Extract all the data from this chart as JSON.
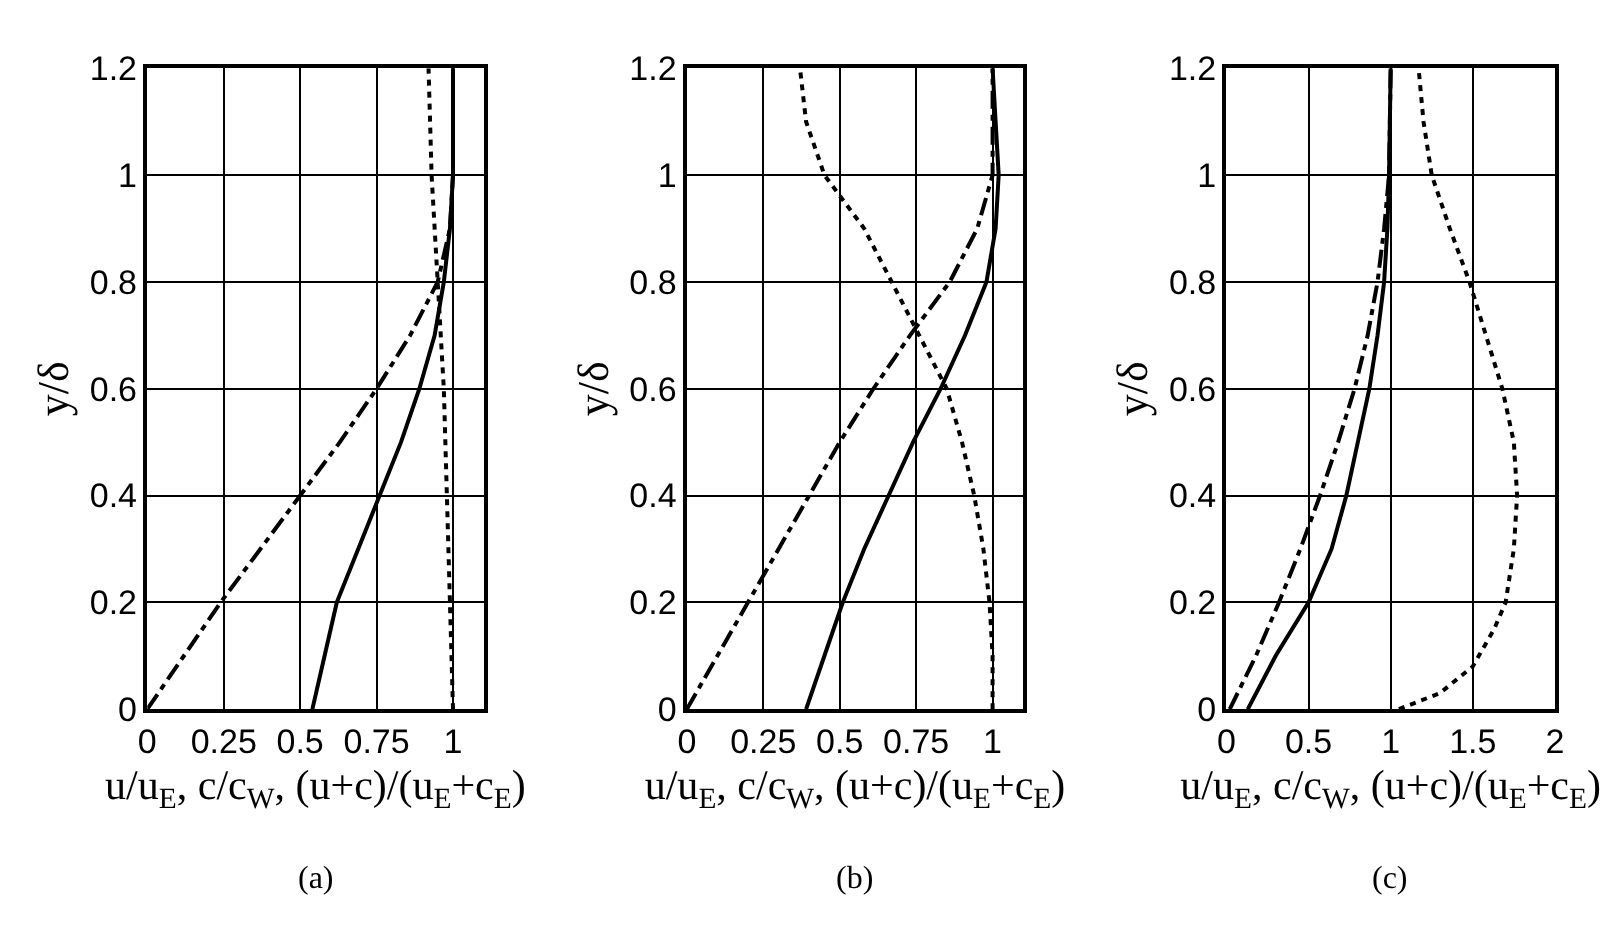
{
  "chart_data": [
    {
      "type": "line",
      "xlabel": "u/u$_{E}$, c/c$_{W}$, (u+c)/(u$_{E}$+c$_{E}$)",
      "ylabel": "y/δ",
      "annotations": [
        "(a)"
      ],
      "xlim": [
        0,
        1.1
      ],
      "xticks": [
        0,
        0.25,
        0.5,
        0.75,
        1
      ],
      "ylim": [
        0,
        1.2
      ],
      "yticks": [
        0,
        0.2,
        0.4,
        0.6,
        0.8,
        1,
        1.2
      ],
      "grid": true,
      "series": [
        {
          "color": "#000000",
          "line_style": "solid",
          "x": [
            0.54,
            0.58,
            0.62,
            0.69,
            0.76,
            0.83,
            0.89,
            0.94,
            0.97,
            0.99,
            1.0,
            1.0
          ],
          "values": [
            0,
            0.1,
            0.2,
            0.3,
            0.4,
            0.5,
            0.6,
            0.7,
            0.8,
            0.9,
            1.0,
            1.2
          ]
        },
        {
          "color": "#000000",
          "line_style": "dashdot",
          "x": [
            0,
            0.12,
            0.24,
            0.37,
            0.5,
            0.63,
            0.75,
            0.86,
            0.95,
            0.99,
            1.0,
            1.0
          ],
          "values": [
            0,
            0.1,
            0.2,
            0.3,
            0.4,
            0.5,
            0.6,
            0.7,
            0.8,
            0.9,
            1.0,
            1.2
          ]
        },
        {
          "color": "#000000",
          "line_style": "dotted",
          "x": [
            1.0,
            0.99,
            0.98,
            0.97,
            0.95,
            0.93,
            0.92
          ],
          "values": [
            0,
            0.2,
            0.4,
            0.6,
            0.8,
            1.0,
            1.2
          ]
        }
      ]
    },
    {
      "type": "line",
      "xlabel": "u/u$_{E}$, c/c$_{W}$, (u+c)/(u$_{E}$+c$_{E}$)",
      "ylabel": "y/δ",
      "annotations": [
        "(b)"
      ],
      "xlim": [
        0,
        1.1
      ],
      "xticks": [
        0,
        0.25,
        0.5,
        0.75,
        1
      ],
      "ylim": [
        0,
        1.2
      ],
      "yticks": [
        0,
        0.2,
        0.4,
        0.6,
        0.8,
        1,
        1.2
      ],
      "grid": true,
      "series": [
        {
          "color": "#000000",
          "line_style": "solid",
          "x": [
            0.39,
            0.45,
            0.51,
            0.58,
            0.66,
            0.74,
            0.83,
            0.91,
            0.98,
            1.01,
            1.02,
            1.01,
            1.0
          ],
          "values": [
            0,
            0.1,
            0.2,
            0.3,
            0.4,
            0.5,
            0.6,
            0.7,
            0.8,
            0.9,
            1.0,
            1.1,
            1.2
          ]
        },
        {
          "color": "#000000",
          "line_style": "dashdot",
          "x": [
            0,
            0.1,
            0.2,
            0.3,
            0.4,
            0.5,
            0.61,
            0.73,
            0.86,
            0.95,
            1.0,
            1.0
          ],
          "values": [
            0,
            0.1,
            0.2,
            0.3,
            0.4,
            0.5,
            0.6,
            0.7,
            0.8,
            0.9,
            1.0,
            1.2
          ]
        },
        {
          "color": "#000000",
          "line_style": "dotted",
          "x": [
            1.0,
            1.0,
            0.99,
            0.97,
            0.94,
            0.9,
            0.85,
            0.76,
            0.67,
            0.58,
            0.45,
            0.39,
            0.37
          ],
          "values": [
            0,
            0.1,
            0.2,
            0.3,
            0.4,
            0.5,
            0.6,
            0.7,
            0.8,
            0.9,
            1.0,
            1.1,
            1.2
          ]
        }
      ]
    },
    {
      "type": "line",
      "xlabel": "u/u$_{E}$, c/c$_{W}$, (u+c)/(u$_{E}$+c$_{E}$)",
      "ylabel": "y/δ",
      "annotations": [
        "(c)"
      ],
      "xlim": [
        0,
        2
      ],
      "xticks": [
        0,
        0.5,
        1,
        1.5,
        2
      ],
      "ylim": [
        0,
        1.2
      ],
      "yticks": [
        0,
        0.2,
        0.4,
        0.6,
        0.8,
        1,
        1.2
      ],
      "grid": true,
      "series": [
        {
          "color": "#000000",
          "line_style": "solid",
          "x": [
            0.13,
            0.3,
            0.5,
            0.64,
            0.73,
            0.8,
            0.87,
            0.92,
            0.96,
            0.98,
            0.99,
            1.0
          ],
          "values": [
            0,
            0.1,
            0.2,
            0.3,
            0.4,
            0.5,
            0.6,
            0.7,
            0.8,
            0.9,
            1.0,
            1.2
          ]
        },
        {
          "color": "#000000",
          "line_style": "dashdot",
          "x": [
            0.02,
            0.18,
            0.32,
            0.45,
            0.57,
            0.68,
            0.78,
            0.86,
            0.92,
            0.96,
            0.99,
            1.0
          ],
          "values": [
            0,
            0.1,
            0.2,
            0.3,
            0.4,
            0.5,
            0.6,
            0.7,
            0.8,
            0.9,
            1.0,
            1.2
          ]
        },
        {
          "color": "#000000",
          "line_style": "dotted",
          "x": [
            1.05,
            1.3,
            1.5,
            1.63,
            1.7,
            1.75,
            1.77,
            1.75,
            1.68,
            1.58,
            1.48,
            1.36,
            1.25,
            1.2,
            1.17
          ],
          "values": [
            0,
            0.03,
            0.08,
            0.15,
            0.2,
            0.3,
            0.4,
            0.5,
            0.6,
            0.7,
            0.8,
            0.9,
            1.0,
            1.1,
            1.2
          ]
        }
      ]
    }
  ]
}
